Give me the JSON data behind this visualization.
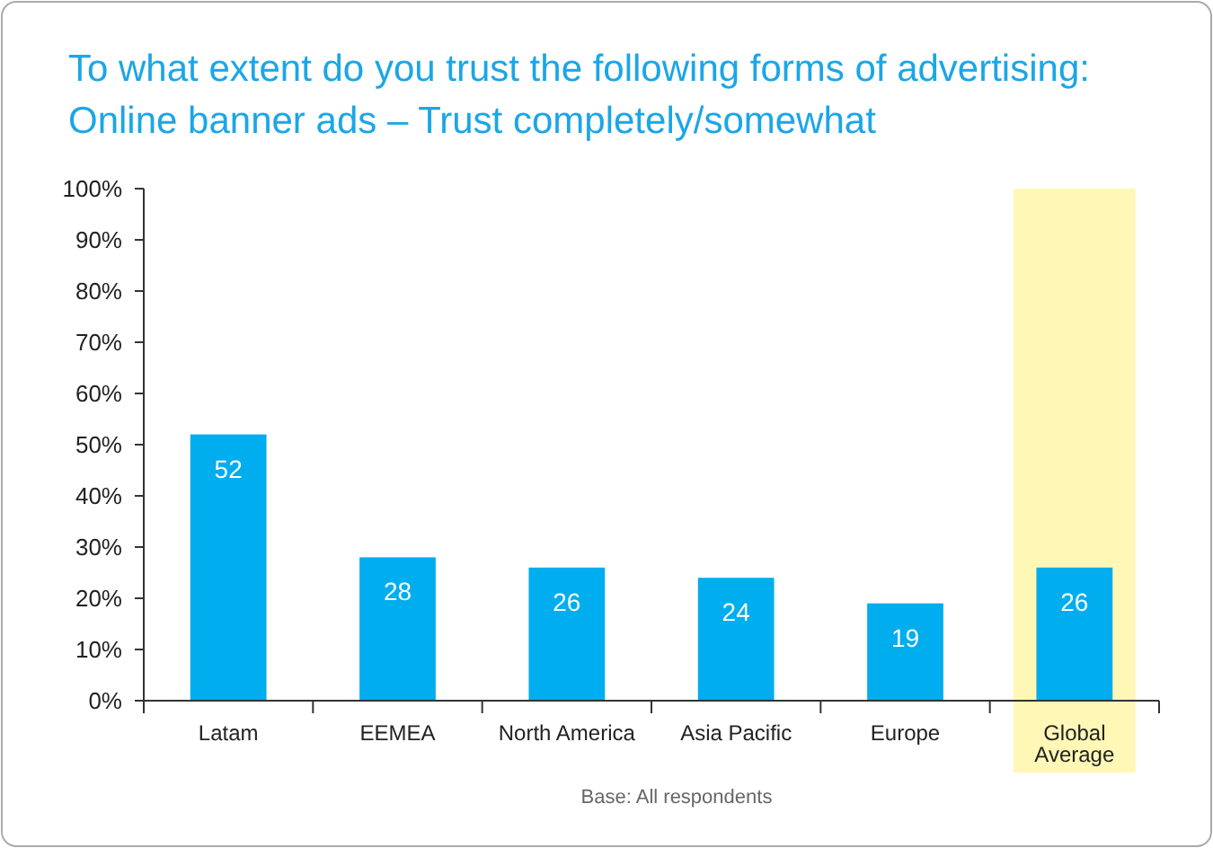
{
  "chart_data": {
    "type": "bar",
    "title": "To what extent do you trust the following forms of advertising:",
    "subtitle": "Online banner ads – Trust completely/somewhat",
    "categories": [
      "Latam",
      "EEMEA",
      "North America",
      "Asia Pacific",
      "Europe",
      "Global Average"
    ],
    "values": [
      52,
      28,
      26,
      24,
      19,
      26
    ],
    "color": "#00adef",
    "ylim": [
      0,
      100
    ],
    "yticks": [
      {
        "value": 0,
        "label": "0%"
      },
      {
        "value": 10,
        "label": "10%"
      },
      {
        "value": 20,
        "label": "20%"
      },
      {
        "value": 30,
        "label": "30%"
      },
      {
        "value": 40,
        "label": "40%"
      },
      {
        "value": 50,
        "label": "50%"
      },
      {
        "value": 60,
        "label": "60%"
      },
      {
        "value": 70,
        "label": "70%"
      },
      {
        "value": 80,
        "label": "80%"
      },
      {
        "value": 90,
        "label": "90%"
      },
      {
        "value": 100,
        "label": "100%"
      }
    ],
    "data_labels": true,
    "grid": false,
    "bands": [
      {
        "axis": "x",
        "from": "Global Average",
        "to": "Global Average",
        "color": "#fff7b5"
      }
    ],
    "annotations": [
      "Base:  All respondents"
    ]
  }
}
